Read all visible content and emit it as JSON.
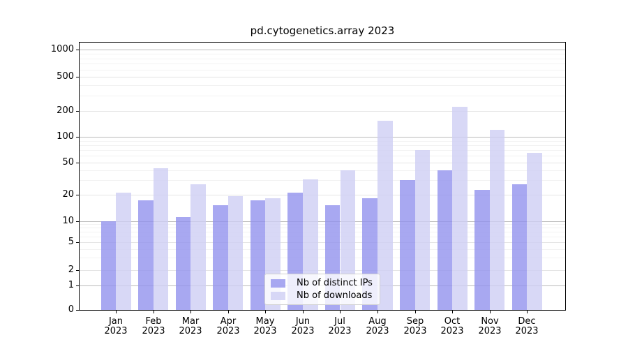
{
  "chart_data": {
    "type": "bar",
    "title": "pd.cytogenetics.array 2023",
    "categories": [
      "Jan",
      "Feb",
      "Mar",
      "Apr",
      "May",
      "Jun",
      "Jul",
      "Aug",
      "Sep",
      "Oct",
      "Nov",
      "Dec"
    ],
    "category_year": "2023",
    "series": [
      {
        "name": "Nb of distinct IPs",
        "color": "rgba(146,146,237,0.8)",
        "values": [
          10,
          17,
          11,
          15,
          17,
          21,
          15,
          18,
          30,
          40,
          23,
          27
        ]
      },
      {
        "name": "Nb of downloads",
        "color": "rgba(206,206,244,0.8)",
        "values": [
          21,
          43,
          27,
          19,
          18,
          31,
          40,
          155,
          70,
          225,
          120,
          65
        ]
      }
    ],
    "y_axis": {
      "scale": "asinh-log",
      "ticks": [
        0,
        1,
        2,
        5,
        10,
        20,
        50,
        100,
        200,
        500,
        1000
      ],
      "emphasized_gridlines": [
        1,
        10,
        100,
        1000
      ]
    },
    "x_axis": {
      "tick_label_format": "Mon 2023"
    },
    "legend": {
      "position": "lower center",
      "entries": [
        "Nb of distinct IPs",
        "Nb of downloads"
      ]
    },
    "grid": {
      "on": true
    }
  }
}
